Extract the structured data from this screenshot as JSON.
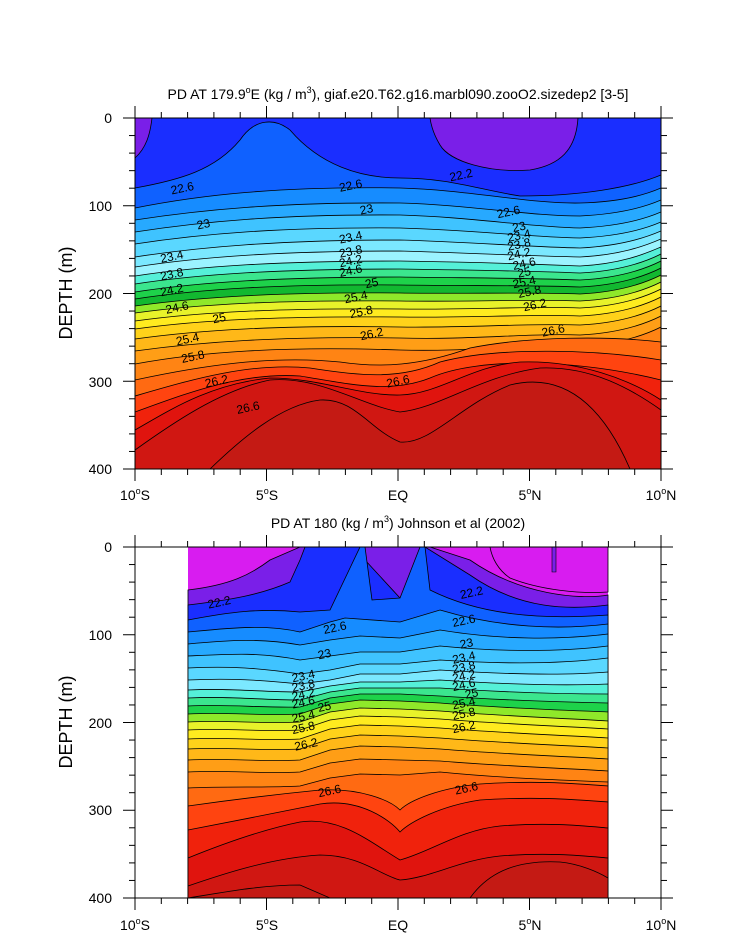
{
  "chart_data": [
    {
      "type": "contour",
      "title_prefix": "PD AT 179.9",
      "title_sup1": "o",
      "title_mid": "E (kg / m",
      "title_sup2": "3",
      "title_suffix": "), giaf.e20.T62.g16.marbl090.zooO2.sizedep2 [3-5]",
      "ylabel": "DEPTH (m)",
      "xlim": [
        -10,
        10
      ],
      "ylim": [
        0,
        400
      ],
      "y_ticks": [
        "0",
        "100",
        "200",
        "300",
        "400"
      ],
      "x_ticks": [
        {
          "num": "10",
          "deg": "o",
          "dir": "S"
        },
        {
          "num": "5",
          "deg": "o",
          "dir": "S"
        },
        {
          "num": "EQ",
          "deg": "",
          "dir": ""
        },
        {
          "num": "5",
          "deg": "o",
          "dir": "N"
        },
        {
          "num": "10",
          "deg": "o",
          "dir": "N"
        }
      ],
      "contour_levels": [
        22.0,
        22.2,
        22.4,
        22.6,
        22.8,
        23.0,
        23.2,
        23.4,
        23.6,
        23.8,
        24.0,
        24.2,
        24.4,
        24.6,
        24.8,
        25.0,
        25.2,
        25.4,
        25.6,
        25.8,
        26.0,
        26.2,
        26.4,
        26.6,
        26.8
      ],
      "data_lon_range": [
        -10,
        10
      ],
      "contour_labels": [
        {
          "text": "22.6",
          "x": -8.2,
          "y": 80
        },
        {
          "text": "22.6",
          "x": -1.8,
          "y": 77
        },
        {
          "text": "22.2",
          "x": 2.4,
          "y": 65
        },
        {
          "text": "22.6",
          "x": 4.2,
          "y": 107
        },
        {
          "text": "23",
          "x": -7.4,
          "y": 121
        },
        {
          "text": "23",
          "x": -1.2,
          "y": 104
        },
        {
          "text": "23",
          "x": 4.6,
          "y": 124
        },
        {
          "text": "23.4",
          "x": -8.6,
          "y": 158
        },
        {
          "text": "23.4",
          "x": -1.8,
          "y": 136
        },
        {
          "text": "23.4",
          "x": 4.6,
          "y": 134
        },
        {
          "text": "23.8",
          "x": -8.6,
          "y": 178
        },
        {
          "text": "23.8",
          "x": -1.8,
          "y": 152
        },
        {
          "text": "23.8",
          "x": 4.6,
          "y": 144
        },
        {
          "text": "24.2",
          "x": -8.6,
          "y": 196
        },
        {
          "text": "24.2",
          "x": -1.8,
          "y": 163
        },
        {
          "text": "24.2",
          "x": 4.6,
          "y": 155
        },
        {
          "text": "24.6",
          "x": -8.4,
          "y": 216
        },
        {
          "text": "24.6",
          "x": -1.8,
          "y": 174
        },
        {
          "text": "24.6",
          "x": 4.8,
          "y": 166
        },
        {
          "text": "25",
          "x": -6.8,
          "y": 228
        },
        {
          "text": "25",
          "x": -1.0,
          "y": 188
        },
        {
          "text": "25",
          "x": 4.8,
          "y": 176
        },
        {
          "text": "25.4",
          "x": -8.0,
          "y": 252
        },
        {
          "text": "25.4",
          "x": -1.6,
          "y": 204
        },
        {
          "text": "25.4",
          "x": 4.8,
          "y": 187
        },
        {
          "text": "25.8",
          "x": -7.8,
          "y": 272
        },
        {
          "text": "25.8",
          "x": -1.4,
          "y": 221
        },
        {
          "text": "25.8",
          "x": 5.0,
          "y": 198
        },
        {
          "text": "26.2",
          "x": -6.9,
          "y": 300
        },
        {
          "text": "26.2",
          "x": -1.0,
          "y": 246
        },
        {
          "text": "26.2",
          "x": 5.2,
          "y": 213
        },
        {
          "text": "26.6",
          "x": -5.7,
          "y": 330
        },
        {
          "text": "26.6",
          "x": 0.0,
          "y": 300
        },
        {
          "text": "26.6",
          "x": 5.9,
          "y": 242
        }
      ]
    },
    {
      "type": "contour",
      "title_prefix": "PD AT 180 (kg / m",
      "title_sup": "3",
      "title_suffix": ") Johnson et al (2002)",
      "ylabel": "DEPTH (m)",
      "xlim": [
        -10,
        10
      ],
      "ylim": [
        0,
        400
      ],
      "y_ticks": [
        "0",
        "100",
        "200",
        "300",
        "400"
      ],
      "x_ticks": [
        {
          "num": "10",
          "deg": "o",
          "dir": "S"
        },
        {
          "num": "5",
          "deg": "o",
          "dir": "S"
        },
        {
          "num": "EQ",
          "deg": "",
          "dir": ""
        },
        {
          "num": "5",
          "deg": "o",
          "dir": "N"
        },
        {
          "num": "10",
          "deg": "o",
          "dir": "N"
        }
      ],
      "contour_levels": [
        22.0,
        22.2,
        22.4,
        22.6,
        22.8,
        23.0,
        23.2,
        23.4,
        23.6,
        23.8,
        24.0,
        24.2,
        24.4,
        24.6,
        24.8,
        25.0,
        25.2,
        25.4,
        25.6,
        25.8,
        26.0,
        26.2,
        26.4,
        26.6,
        26.8
      ],
      "data_lon_range": [
        -8,
        8
      ],
      "contour_labels": [
        {
          "text": "22.2",
          "x": -6.8,
          "y": 63
        },
        {
          "text": "22.2",
          "x": 2.8,
          "y": 52
        },
        {
          "text": "22.6",
          "x": -2.4,
          "y": 92
        },
        {
          "text": "22.6",
          "x": 2.5,
          "y": 84
        },
        {
          "text": "23",
          "x": -2.8,
          "y": 122
        },
        {
          "text": "23",
          "x": 2.6,
          "y": 110
        },
        {
          "text": "23.4",
          "x": -3.6,
          "y": 147
        },
        {
          "text": "23.4",
          "x": 2.5,
          "y": 126
        },
        {
          "text": "23.8",
          "x": -3.6,
          "y": 158
        },
        {
          "text": "23.8",
          "x": 2.5,
          "y": 137
        },
        {
          "text": "24.2",
          "x": -3.6,
          "y": 168
        },
        {
          "text": "24.2",
          "x": 2.5,
          "y": 147
        },
        {
          "text": "24.6",
          "x": -3.6,
          "y": 177
        },
        {
          "text": "24.6",
          "x": 2.5,
          "y": 157
        },
        {
          "text": "25",
          "x": -2.8,
          "y": 182
        },
        {
          "text": "25",
          "x": 2.8,
          "y": 167
        },
        {
          "text": "25.4",
          "x": -3.6,
          "y": 193
        },
        {
          "text": "25.4",
          "x": 2.5,
          "y": 178
        },
        {
          "text": "25.8",
          "x": -3.6,
          "y": 206
        },
        {
          "text": "25.8",
          "x": 2.5,
          "y": 190
        },
        {
          "text": "26.2",
          "x": -3.5,
          "y": 225
        },
        {
          "text": "26.2",
          "x": 2.5,
          "y": 205
        },
        {
          "text": "26.6",
          "x": -2.6,
          "y": 278
        },
        {
          "text": "26.6",
          "x": 2.6,
          "y": 275
        }
      ]
    }
  ]
}
